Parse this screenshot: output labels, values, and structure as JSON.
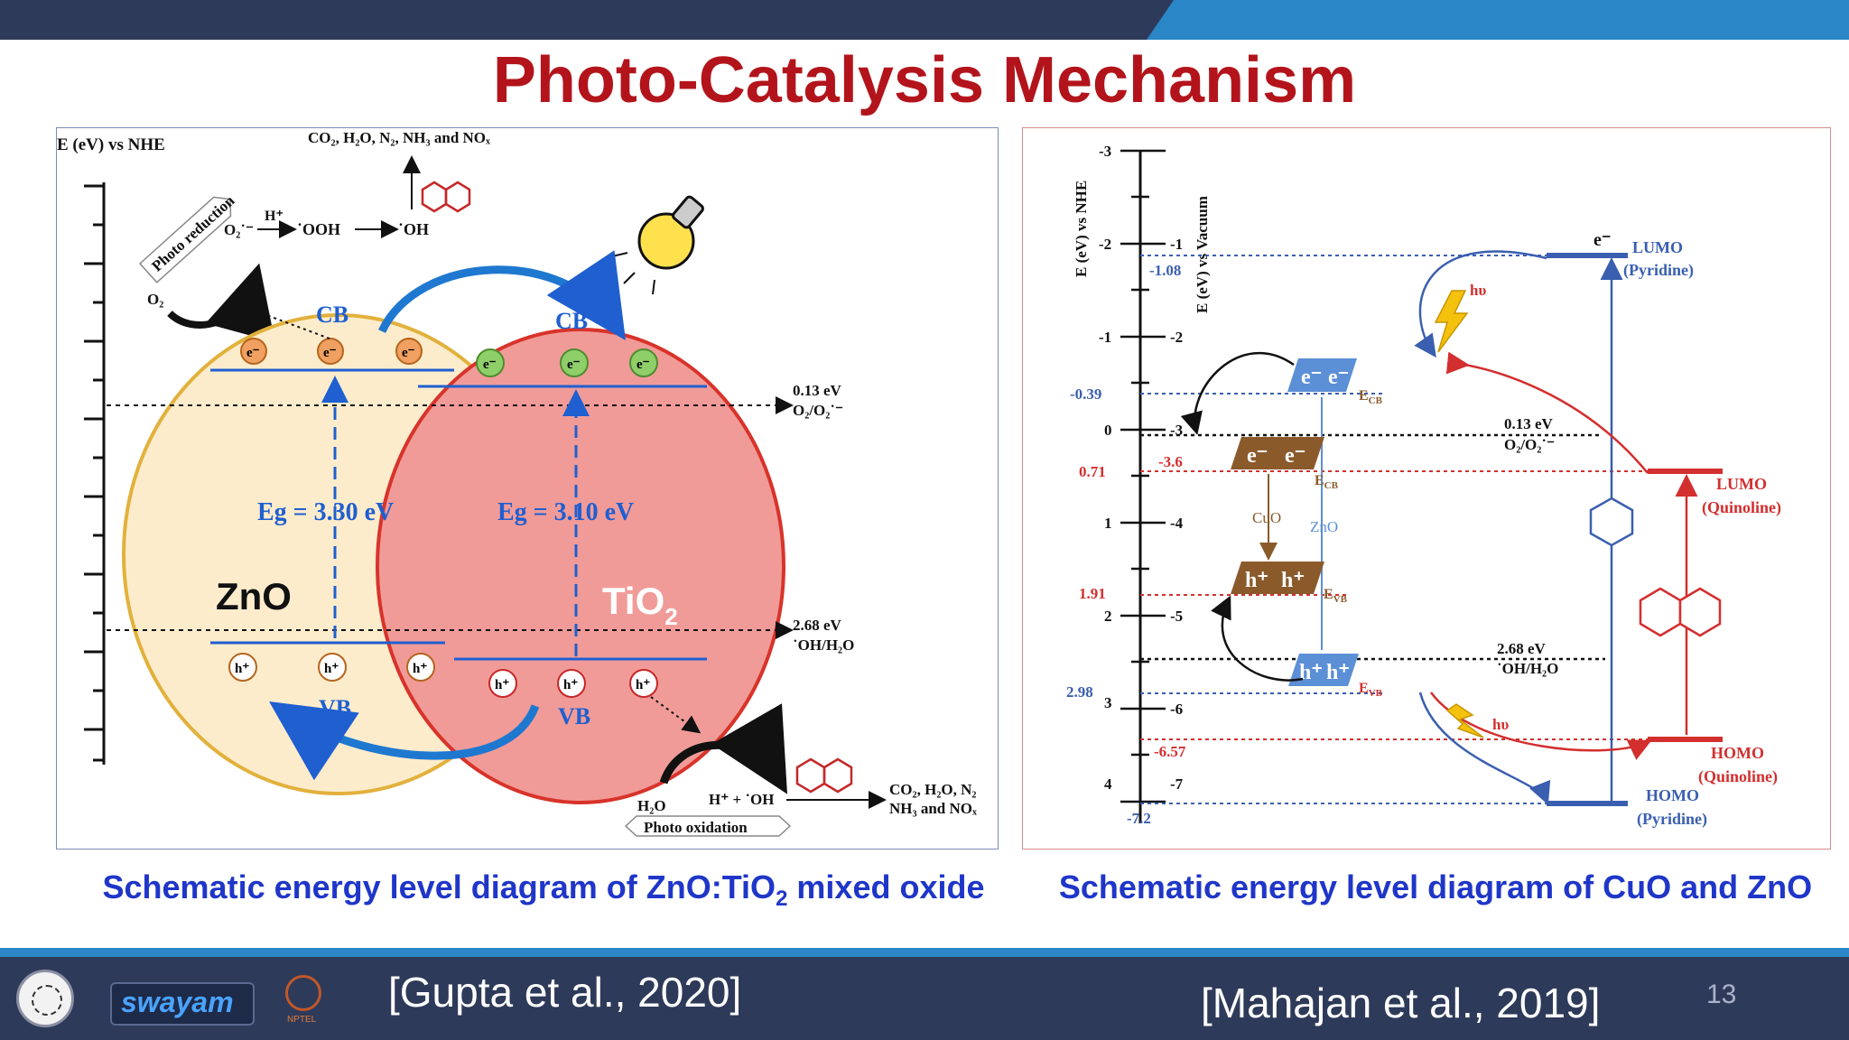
{
  "slide": {
    "title": "Photo-Catalysis Mechanism",
    "caption_left_prefix": "Schematic energy level diagram of ZnO:TiO",
    "caption_left_sub": "2",
    "caption_left_suffix": " mixed oxide",
    "caption_right": "Schematic energy level diagram of CuO and ZnO",
    "ref_left": "[Gupta et al., 2020]",
    "ref_right": "[Mahajan et al., 2019]",
    "page_number": "13",
    "logo_swayam": "swayam",
    "logo_nptel": "NPTEL"
  },
  "left_diagram": {
    "axis_label": "E (eV) vs NHE",
    "photo_reduction": "Photo reduction",
    "photo_oxidation": "Photo oxidation",
    "top_products": "CO₂, H₂O, N₂, NH₃ and NOₓ",
    "o2": "O₂",
    "o2_radical": "O₂˙⁻",
    "h_plus": "H⁺",
    "ooh": "˙OOH",
    "oh": "˙OH",
    "cb_zno": "CB",
    "cb_tio2": "CB",
    "vb_zno": "VB",
    "vb_tio2": "VB",
    "eg_zno": "Eg = 3.30 eV",
    "eg_tio2": "Eg = 3.10 eV",
    "zno_label": "ZnO",
    "tio2_label": "TiO",
    "tio2_sub": "2",
    "electron": "e⁻",
    "hole": "h⁺",
    "level_013": "0.13 eV",
    "level_013_couple": "O₂/O₂˙⁻",
    "level_268": "2.68 eV",
    "level_268_couple": "˙OH/H₂O",
    "h2o": "H₂O",
    "h_oh": "H⁺ + ˙OH",
    "bottom_products_1": "CO₂, H₂O, N₂",
    "bottom_products_2": "NH₃ and NOₓ"
  },
  "right_diagram": {
    "axis_nhe": "E (eV) vs NHE",
    "axis_vac": "E (eV) vs Vacuum",
    "nhe_ticks": [
      "-3",
      "-2",
      "-1",
      "0",
      "1",
      "2",
      "3",
      "4"
    ],
    "vac_ticks": [
      "-1",
      "-2",
      "-3",
      "-4",
      "-5",
      "-6",
      "-7"
    ],
    "val_108": "-1.08",
    "val_039": "-0.39",
    "val_071": "0.71",
    "val_36": "-3.6",
    "val_191": "1.91",
    "val_298": "2.98",
    "val_657": "-6.57",
    "val_72": "-7.2",
    "level_013": "0.13 eV",
    "level_013_couple": "O₂/O₂˙⁻",
    "level_268": "2.68 eV",
    "level_268_couple": "˙OH/H₂O",
    "lumo_pyr": "LUMO",
    "lumo_pyr_name": "(Pyridine)",
    "lumo_quin": "LUMO",
    "lumo_quin_name": "(Quinoline)",
    "homo_quin": "HOMO",
    "homo_quin_name": "(Quinoline)",
    "homo_pyr": "HOMO",
    "homo_pyr_name": "(Pyridine)",
    "hv1": "hυ",
    "hv2": "hυ",
    "cuo": "CuO",
    "zno": "ZnO",
    "ecb": "E",
    "ecb_sub": "CB",
    "evb": "E",
    "evb_sub": "VB",
    "electron": "e⁻",
    "hole": "h⁺",
    "e_pyr": "e⁻"
  },
  "colors": {
    "title_red": "#b3141b",
    "caption_blue": "#1f36c9",
    "bar_dark": "#2e3a59",
    "bar_accent": "#2a86c6"
  }
}
